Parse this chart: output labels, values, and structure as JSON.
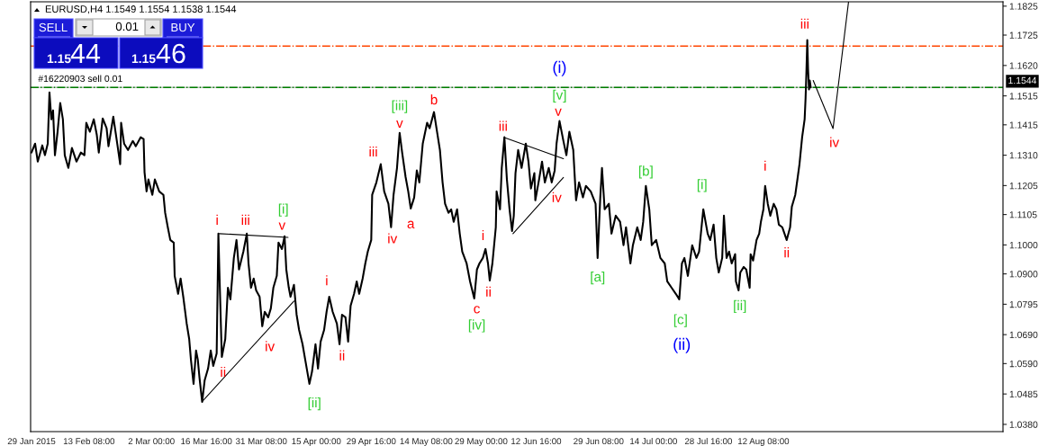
{
  "chart_data": {
    "type": "line",
    "title": "EURUSD,H4 1.1549 1.1554 1.1538 1.1544",
    "xlim": [
      "2015-01-28T18:15",
      "2015-10-15T06:30"
    ],
    "ylim": [
      1.0355,
      1.184
    ],
    "xticks": [
      {
        "value": "2015-01-29T00:00",
        "label": "29 Jan 2015"
      },
      {
        "value": "2015-02-13T08:00",
        "label": "13 Feb 08:00"
      },
      {
        "value": "2015-03-02T00:00",
        "label": "2 Mar 00:00"
      },
      {
        "value": "2015-03-16T16:00",
        "label": "16 Mar 16:00"
      },
      {
        "value": "2015-03-31T08:00",
        "label": "31 Mar 08:00"
      },
      {
        "value": "2015-04-15T00:00",
        "label": "15 Apr 00:00"
      },
      {
        "value": "2015-04-29T16:00",
        "label": "29 Apr 16:00"
      },
      {
        "value": "2015-05-14T08:00",
        "label": "14 May 08:00"
      },
      {
        "value": "2015-05-29T00:00",
        "label": "29 May 00:00"
      },
      {
        "value": "2015-06-12T16:00",
        "label": "12 Jun 16:00"
      },
      {
        "value": "2015-06-29T08:00",
        "label": "29 Jun 08:00"
      },
      {
        "value": "2015-07-14T00:00",
        "label": "14 Jul 00:00"
      },
      {
        "value": "2015-07-28T16:00",
        "label": "28 Jul 16:00"
      },
      {
        "value": "2015-08-12T08:00",
        "label": "12 Aug 08:00"
      }
    ],
    "yticks": [
      {
        "value": 1.038,
        "label": "1.0380"
      },
      1.0485,
      {
        "value": 1.059,
        "label": "1.0590"
      },
      {
        "value": 1.069,
        "label": "1.0690"
      },
      1.0795,
      {
        "value": 1.09,
        "label": "1.0900"
      },
      {
        "value": 1.1,
        "label": "1.1000"
      },
      1.1105,
      1.1205,
      {
        "value": 1.131,
        "label": "1.1310"
      },
      1.1415,
      1.1515,
      {
        "value": 1.162,
        "label": "1.1620"
      },
      1.1725,
      1.1825
    ],
    "series": [
      {
        "color": "#000000",
        "x": [
          "2015-01-29T00:00",
          "2015-01-29T23:00",
          "2015-01-30T16:00",
          "2015-01-31T21:00",
          "2015-02-01T14:00",
          "2015-02-02T08:00",
          "2015-02-02T19:00",
          "2015-02-03T07:00",
          "2015-02-03T18:00",
          "2015-02-04T06:00",
          "2015-02-04T23:00",
          "2015-02-05T16:00",
          "2015-02-06T09:00",
          "2015-02-06T21:00",
          "2015-02-07T20:00",
          "2015-02-08T19:00",
          "2015-02-10T00:00",
          "2015-02-11T04:00",
          "2015-02-12T03:00",
          "2015-02-12T15:00",
          "2015-02-13T14:00",
          "2015-02-14T15:00",
          "2015-02-15T10:00",
          "2015-02-15T23:00",
          "2015-02-17T00:00",
          "2015-02-18T01:00",
          "2015-02-18T13:00",
          "2015-02-19T20:00",
          "2015-02-20T21:00",
          "2015-02-21T16:00",
          "2015-02-21T22:00",
          "2015-02-22T17:00",
          "2015-02-23T18:00",
          "2015-02-25T01:00",
          "2015-02-25T20:00",
          "2015-02-27T03:00",
          "2015-02-27T22:00",
          "2015-02-28T04:00",
          "2015-02-28T17:00",
          "2015-03-01T05:00",
          "2015-03-02T06:00",
          "2015-03-02T22:00",
          "2015-03-04T02:00",
          "2015-03-05T05:00",
          "2015-03-05T16:00",
          "2015-03-06T09:00",
          "2015-03-07T01:00",
          "2015-03-07T23:00",
          "2015-03-08T05:00",
          "2015-03-09T03:00",
          "2015-03-09T19:00",
          "2015-03-10T12:00",
          "2015-03-11T10:00",
          "2015-03-12T02:00",
          "2015-03-12T13:00",
          "2015-03-13T06:00",
          "2015-03-13T22:00",
          "2015-03-14T09:00",
          "2015-03-14T20:00",
          "2015-03-15T13:00",
          "2015-03-16T05:00",
          "2015-03-17T03:00",
          "2015-03-17T20:00",
          "2015-03-18T12:00",
          "2015-03-19T10:00",
          "2015-03-19T21:00",
          "2015-03-20T03:00",
          "2015-03-20T14:00",
          "2015-03-20T19:00",
          "2015-03-21T17:00",
          "2015-03-22T10:00",
          "2015-03-23T02:00",
          "2015-03-24T00:00",
          "2015-03-24T17:00",
          "2015-03-25T09:00",
          "2015-03-26T13:00",
          "2015-03-27T11:00",
          "2015-03-27T22:00",
          "2015-03-28T14:00",
          "2015-03-29T07:00",
          "2015-03-29T23:00",
          "2015-03-30T21:00",
          "2015-03-31T14:00",
          "2015-04-01T06:00",
          "2015-04-02T04:00",
          "2015-04-02T21:00",
          "2015-04-03T13:00",
          "2015-04-04T11:00",
          "2015-04-04T22:00",
          "2015-04-05T20:00",
          "2015-04-06T13:00",
          "2015-04-07T00:00",
          "2015-04-07T16:00",
          "2015-04-08T03:00",
          "2015-04-09T01:00",
          "2015-04-09T18:00",
          "2015-04-10T10:00",
          "2015-04-11T08:00",
          "2015-04-12T01:00",
          "2015-04-13T04:00",
          "2015-04-13T21:00",
          "2015-04-14T19:00",
          "2015-04-15T11:00",
          "2015-04-16T04:00",
          "2015-04-17T02:00",
          "2015-04-17T18:00",
          "2015-04-18T11:00",
          "2015-04-19T09:00",
          "2015-04-20T12:00",
          "2015-04-21T05:00",
          "2015-04-21T21:00",
          "2015-04-22T19:00",
          "2015-04-23T12:00",
          "2015-04-24T04:00",
          "2015-04-25T02:00",
          "2015-04-25T19:00",
          "2015-04-26T11:00",
          "2015-04-27T09:00",
          "2015-04-28T02:00",
          "2015-04-28T18:00",
          "2015-04-29T16:00",
          "2015-04-29T22:00",
          "2015-05-01T01:00",
          "2015-05-02T05:00",
          "2015-05-03T03:00",
          "2015-05-04T06:00",
          "2015-05-04T23:00",
          "2015-05-05T15:00",
          "2015-05-06T13:00",
          "2015-05-07T06:00",
          "2015-05-07T22:00",
          "2015-05-08T20:00",
          "2015-05-09T13:00",
          "2015-05-10T05:00",
          "2015-05-11T03:00",
          "2015-05-11T20:00",
          "2015-05-12T12:00",
          "2015-05-13T10:00",
          "2015-05-14T14:00",
          "2015-05-15T06:00",
          "2015-05-16T10:00",
          "2015-05-17T02:00",
          "2015-05-18T00:00",
          "2015-05-18T17:00",
          "2015-05-19T09:00",
          "2015-05-20T07:00",
          "2015-05-21T00:00",
          "2015-05-21T16:00",
          "2015-05-22T14:00",
          "2015-05-23T07:00",
          "2015-05-23T23:00",
          "2015-05-25T03:00",
          "2015-05-26T01:00",
          "2015-05-27T04:00",
          "2015-05-27T21:00",
          "2015-05-28T13:00",
          "2015-05-29T11:00",
          "2015-05-30T04:00",
          "2015-05-30T20:00",
          "2015-05-31T07:00",
          "2015-06-01T00:00",
          "2015-06-01T22:00",
          "2015-06-02T03:00",
          "2015-06-03T01:00",
          "2015-06-03T12:00",
          "2015-06-04T05:00",
          "2015-06-04T21:00",
          "2015-06-05T14:00",
          "2015-06-06T06:00",
          "2015-06-06T17:00",
          "2015-06-07T04:00",
          "2015-06-07T21:00",
          "2015-06-08T19:00",
          "2015-06-09T22:00",
          "2015-06-10T15:00",
          "2015-06-11T07:00",
          "2015-06-12T05:00",
          "2015-06-12T11:00",
          "2015-06-13T11:00",
          "2015-06-14T06:00",
          "2015-06-15T00:00",
          "2015-06-16T01:00",
          "2015-06-16T20:00",
          "2015-06-17T15:00",
          "2015-06-18T03:00",
          "2015-06-18T22:00",
          "2015-06-19T23:00",
          "2015-06-20T18:00",
          "2015-06-21T13:00",
          "2015-06-22T14:00",
          "2015-06-23T08:00",
          "2015-06-24T03:00",
          "2015-06-25T04:00",
          "2015-06-25T23:00",
          "2015-06-27T06:00",
          "2015-06-28T13:00",
          "2015-06-29T02:00",
          "2015-06-29T19:00",
          "2015-06-30T06:00",
          "2015-06-30T23:00",
          "2015-07-02T02:00",
          "2015-07-02T19:00",
          "2015-07-03T22:00",
          "2015-07-05T02:00",
          "2015-07-06T00:00",
          "2015-07-06T16:00",
          "2015-07-07T20:00",
          "2015-07-08T12:00",
          "2015-07-09T16:00",
          "2015-07-10T14:00",
          "2015-07-11T06:00",
          "2015-07-11T23:00",
          "2015-07-12T21:00",
          "2015-07-13T13:00",
          "2015-07-14T17:00",
          "2015-07-15T20:00",
          "2015-07-17T00:00",
          "2015-07-17T16:00",
          "2015-07-18T20:00",
          "2015-07-19T23:00",
          "2015-07-20T21:00",
          "2015-07-21T14:00",
          "2015-07-22T06:00",
          "2015-07-23T04:00",
          "2015-07-24T08:00",
          "2015-07-25T11:00",
          "2015-07-26T04:00",
          "2015-07-27T07:00",
          "2015-07-28T11:00",
          "2015-07-29T03:00",
          "2015-07-30T01:00",
          "2015-07-30T18:00",
          "2015-07-31T10:00",
          "2015-08-01T08:00",
          "2015-08-01T19:00",
          "2015-08-02T12:00",
          "2015-08-03T04:00",
          "2015-08-03T21:00",
          "2015-08-04T19:00",
          "2015-08-05T00:00",
          "2015-08-05T17:00",
          "2015-08-06T04:00",
          "2015-08-07T02:00",
          "2015-08-07T18:00",
          "2015-08-08T16:00",
          "2015-08-08T22:00",
          "2015-08-09T14:00",
          "2015-08-10T12:00",
          "2015-08-11T05:00",
          "2015-08-11T16:00",
          "2015-08-12T08:00",
          "2015-08-12T19:00",
          "2015-08-13T12:00",
          "2015-08-14T04:00",
          "2015-08-15T02:00",
          "2015-08-15T19:00",
          "2015-08-16T11:00",
          "2015-08-17T09:00",
          "2015-08-18T13:00",
          "2015-08-19T11:00",
          "2015-08-19T22:00",
          "2015-08-20T20:00",
          "2015-08-21T12:00",
          "2015-08-21T23:00",
          "2015-08-22T16:00",
          "2015-08-23T08:00",
          "2015-08-23T14:00",
          "2015-08-23T19:00",
          "2015-08-24T01:00",
          "2015-08-24T06:00",
          "2015-08-24T12:00",
          "2015-08-24T17:00",
          "2015-08-24T23:00"
        ],
        "values": [
          1.1319,
          1.135,
          1.1288,
          1.1344,
          1.131,
          1.135,
          1.1527,
          1.1434,
          1.1465,
          1.131,
          1.1391,
          1.149,
          1.1434,
          1.131,
          1.1266,
          1.1335,
          1.1288,
          1.1319,
          1.131,
          1.1422,
          1.1391,
          1.1434,
          1.1381,
          1.1319,
          1.1437,
          1.1403,
          1.1341,
          1.1443,
          1.135,
          1.1279,
          1.1422,
          1.135,
          1.1328,
          1.1359,
          1.1341,
          1.1372,
          1.1366,
          1.1251,
          1.1185,
          1.1226,
          1.1173,
          1.1226,
          1.1185,
          1.1173,
          1.1111,
          1.1061,
          1.1017,
          1.1008,
          1.0893,
          1.0831,
          1.0884,
          1.0821,
          1.0728,
          1.0675,
          1.0604,
          1.052,
          1.0635,
          1.0604,
          1.0541,
          1.0458,
          1.0532,
          1.0573,
          1.0635,
          1.0582,
          1.0625,
          1.1039,
          1.0915,
          1.0706,
          1.0613,
          1.0675,
          1.0852,
          1.0812,
          1.0955,
          1.1017,
          1.0915,
          1.0977,
          1.1039,
          1.0936,
          1.0852,
          1.0884,
          1.0843,
          1.0821,
          1.0719,
          1.0769,
          1.075,
          1.0781,
          1.0852,
          1.0893,
          1.1008,
          1.0986,
          1.103,
          1.0915,
          1.0852,
          1.0821,
          1.0862,
          1.0759,
          1.0706,
          1.0657,
          1.0604,
          1.052,
          1.0563,
          1.0657,
          1.0573,
          1.0666,
          1.0706,
          1.0769,
          1.0821,
          1.0769,
          1.0728,
          1.0657,
          1.0759,
          1.075,
          1.0666,
          1.079,
          1.0831,
          1.0874,
          1.0831,
          1.0884,
          1.0936,
          1.0977,
          1.1017,
          1.1173,
          1.1216,
          1.1279,
          1.1185,
          1.1142,
          1.1061,
          1.1173,
          1.1266,
          1.1387,
          1.1319,
          1.1235,
          1.1185,
          1.1126,
          1.1164,
          1.1257,
          1.1216,
          1.135,
          1.1422,
          1.1403,
          1.1459,
          1.1403,
          1.1328,
          1.1216,
          1.1142,
          1.1111,
          1.1123,
          1.108,
          1.1123,
          1.1039,
          1.0977,
          1.0936,
          1.0874,
          1.0815,
          1.0915,
          1.0936,
          1.0955,
          1.0986,
          1.0936,
          1.0877,
          1.0936,
          1.1061,
          1.1185,
          1.1123,
          1.1266,
          1.1372,
          1.1226,
          1.1123,
          1.1048,
          1.1101,
          1.1248,
          1.1328,
          1.1266,
          1.135,
          1.1288,
          1.1195,
          1.1248,
          1.1154,
          1.1226,
          1.1288,
          1.1216,
          1.1266,
          1.1216,
          1.1257,
          1.135,
          1.1428,
          1.1359,
          1.131,
          1.1391,
          1.1328,
          1.1154,
          1.1216,
          1.1164,
          1.1204,
          1.1185,
          1.1142,
          1.0955,
          1.1164,
          1.1266,
          1.1123,
          1.1142,
          1.1039,
          1.1101,
          1.108,
          1.0999,
          1.1061,
          1.0936,
          1.0999,
          1.1061,
          1.1017,
          1.108,
          1.1204,
          1.1123,
          1.0999,
          1.1017,
          1.0955,
          1.0936,
          1.0874,
          1.0852,
          1.0831,
          1.0812,
          1.0936,
          1.0955,
          1.0893,
          1.0999,
          1.0955,
          1.0977,
          1.1123,
          1.1039,
          1.1017,
          1.107,
          1.0955,
          1.0905,
          1.0955,
          1.1101,
          1.0955,
          1.0977,
          1.0936,
          1.0968,
          1.0874,
          1.0843,
          1.0905,
          1.0924,
          1.0915,
          1.0852,
          1.0968,
          1.0946,
          1.1017,
          1.1039,
          1.108,
          1.1123,
          1.1204,
          1.1142,
          1.1101,
          1.1142,
          1.1123,
          1.107,
          1.1061,
          1.1017,
          1.1061,
          1.1132,
          1.1173,
          1.1235,
          1.1279,
          1.1372,
          1.1434,
          1.1506,
          1.159,
          1.1708,
          1.1608,
          1.1537,
          1.1568,
          1.1544
        ]
      },
      {
        "color": "#000000",
        "x": [
          "2015-03-20T03:00",
          "2015-04-07T11:00"
        ],
        "values": [
          1.1039,
          1.1026
        ]
      },
      {
        "color": "#000000",
        "x": [
          "2015-03-15T13:00",
          "2015-04-09T01:00"
        ],
        "values": [
          1.0459,
          1.0806
        ]
      },
      {
        "color": "#000000",
        "x": [
          "2015-06-04T05:00",
          "2015-06-19T23:00"
        ],
        "values": [
          1.1371,
          1.1298
        ]
      },
      {
        "color": "#000000",
        "x": [
          "2015-06-06T12:00",
          "2015-06-19T23:00"
        ],
        "values": [
          1.1039,
          1.1233
        ]
      },
      {
        "color": "#000000",
        "x": [
          "2015-08-25T15:00",
          "2015-08-30T22:00",
          "2015-09-04T01:00"
        ],
        "values": [
          1.1568,
          1.1402,
          1.1839
        ]
      }
    ],
    "ref_lines": [
      {
        "axis": "y",
        "value": 1.1544,
        "label": "1.1544",
        "color": "#c0c0c0",
        "line_style": "solid"
      },
      {
        "axis": "y",
        "value": 1.1544,
        "label": "#16220903 sell 0.01",
        "color": "#008000",
        "line_style": "dashed"
      },
      {
        "axis": "y",
        "value": 1.1687,
        "color": "#ff4500",
        "line_style": "dashed"
      }
    ],
    "annotations": [
      "SELL",
      "0.01",
      "BUY",
      "1.15",
      "44",
      "1.15",
      "46",
      {
        "text": "i",
        "x": "2015-03-19T21:00",
        "y": 1.1039
      },
      {
        "text": "iii",
        "x": "2015-03-27T11:00",
        "y": 1.1039
      },
      {
        "text": "v",
        "x": "2015-04-06T13:00",
        "y": 1.103
      },
      {
        "text": "ii",
        "x": "2015-03-20T19:00",
        "y": 1.0613
      },
      {
        "text": "iv",
        "x": "2015-03-31T14:00",
        "y": 1.0719
      },
      {
        "text": "i",
        "x": "2015-04-18T11:00",
        "y": 1.0821
      },
      {
        "text": "ii",
        "x": "2015-04-21T05:00",
        "y": 1.0657
      },
      {
        "text": "iii",
        "x": "2015-05-02T05:00",
        "y": 1.1279
      },
      {
        "text": "iv",
        "x": "2015-05-04T23:00",
        "y": 1.1061
      },
      {
        "text": "v",
        "x": "2015-05-07T06:00",
        "y": 1.1387
      },
      {
        "text": "a",
        "x": "2015-05-10T05:00",
        "y": 1.1126
      },
      {
        "text": "b",
        "x": "2015-05-16T10:00",
        "y": 1.1459
      },
      {
        "text": "c",
        "x": "2015-05-27T04:00",
        "y": 1.0815
      },
      {
        "text": "i",
        "x": "2015-05-30T04:00",
        "y": 1.0986
      },
      {
        "text": "ii",
        "x": "2015-05-31T07:00",
        "y": 1.0877
      },
      {
        "text": "iii",
        "x": "2015-06-04T05:00",
        "y": 1.1372
      },
      {
        "text": "iv",
        "x": "2015-06-16T20:00",
        "y": 1.1216
      },
      {
        "text": "v",
        "x": "2015-06-18T22:00",
        "y": 1.1428
      },
      {
        "text": "i",
        "x": "2015-08-12T19:00",
        "y": 1.1204
      },
      {
        "text": "ii",
        "x": "2015-08-18T13:00",
        "y": 1.1017
      },
      {
        "text": "iii",
        "x": "2015-08-24T01:00",
        "y": 1.1708
      },
      {
        "text": "iv",
        "x": "2015-08-30T22:00",
        "y": 1.1402
      },
      {
        "text": "[i]",
        "x": "2015-04-06T13:00",
        "y": 1.103
      },
      {
        "text": "[ii]",
        "x": "2015-04-13T04:00",
        "y": 1.052
      },
      {
        "text": "[iii]",
        "x": "2015-05-07T06:00",
        "y": 1.1387
      },
      {
        "text": "[iv]",
        "x": "2015-05-27T04:00",
        "y": 1.0815
      },
      {
        "text": "[v]",
        "x": "2015-06-18T22:00",
        "y": 1.1428
      },
      {
        "text": "[a]",
        "x": "2015-06-29T02:00",
        "y": 1.0955
      },
      {
        "text": "[b]",
        "x": "2015-07-11T23:00",
        "y": 1.1204
      },
      {
        "text": "[c]",
        "x": "2015-07-20T21:00",
        "y": 1.0812
      },
      {
        "text": "[i]",
        "x": "2015-07-27T07:00",
        "y": 1.1123
      },
      {
        "text": "[ii]",
        "x": "2015-08-05T17:00",
        "y": 1.0843
      },
      {
        "text": "(i)",
        "x": "2015-06-18T22:00",
        "y": 1.1428
      },
      {
        "text": "(ii)",
        "x": "2015-07-20T21:00",
        "y": 1.0812
      }
    ]
  }
}
